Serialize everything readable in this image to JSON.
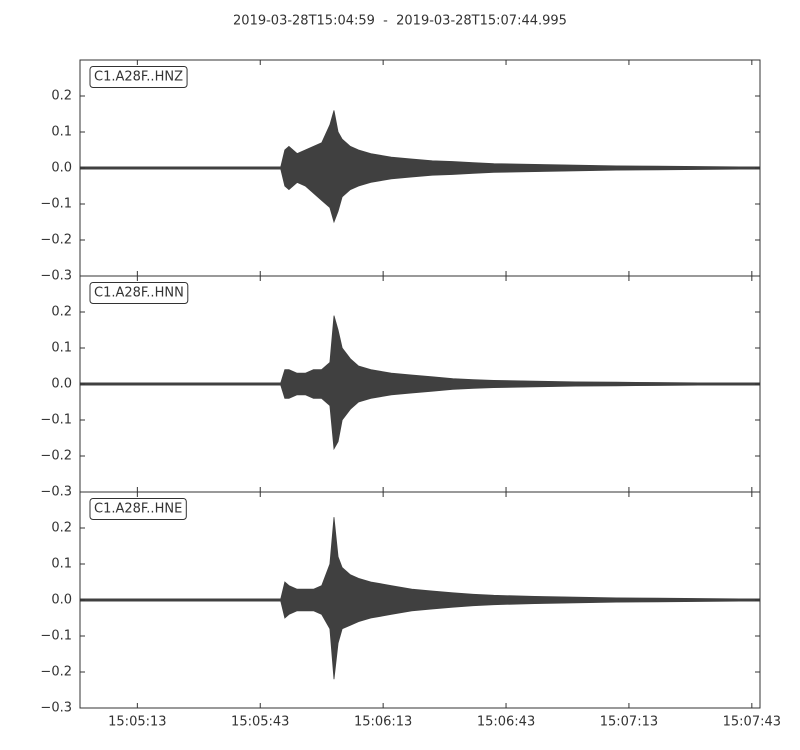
{
  "chart_data": {
    "type": "waveform",
    "title": "2019-03-28T15:04:59  -  2019-03-28T15:07:44.995",
    "color": "#404040",
    "xlim": [
      54299,
      54464.995
    ],
    "xticks": [
      {
        "value": 54313,
        "label": "15:05:13"
      },
      {
        "value": 54343,
        "label": "15:05:43"
      },
      {
        "value": 54373,
        "label": "15:06:13"
      },
      {
        "value": 54403,
        "label": "15:06:43"
      },
      {
        "value": 54433,
        "label": "15:07:13"
      },
      {
        "value": 54463,
        "label": "15:07:43"
      }
    ],
    "ylim": [
      -0.3,
      0.3
    ],
    "yticks": [
      {
        "value": -0.3,
        "label": "−0.3"
      },
      {
        "value": -0.2,
        "label": "−0.2"
      },
      {
        "value": -0.1,
        "label": "−0.1"
      },
      {
        "value": 0,
        "label": "0.0"
      },
      0.1,
      0.2
    ],
    "x": [
      54299,
      54305,
      54310,
      54315,
      54320,
      54325,
      54330,
      54335,
      54340,
      54345,
      54348,
      54349,
      54350,
      54352,
      54354,
      54356,
      54358,
      54360,
      54361,
      54362,
      54363,
      54365,
      54367,
      54370,
      54375,
      54380,
      54385,
      54390,
      54395,
      54400,
      54410,
      54420,
      54430,
      54440,
      54450,
      54460,
      54465
    ],
    "series": [
      {
        "name": "C1.A28F..HNZ",
        "upper": [
          0.003,
          0.003,
          0.003,
          0.003,
          0.003,
          0.003,
          0.003,
          0.003,
          0.003,
          0.003,
          0.003,
          0.05,
          0.06,
          0.04,
          0.05,
          0.06,
          0.07,
          0.12,
          0.16,
          0.1,
          0.08,
          0.06,
          0.05,
          0.04,
          0.03,
          0.025,
          0.02,
          0.018,
          0.015,
          0.012,
          0.01,
          0.008,
          0.006,
          0.005,
          0.004,
          0.003,
          0.003
        ],
        "lower": [
          -0.003,
          -0.003,
          -0.003,
          -0.003,
          -0.003,
          -0.003,
          -0.003,
          -0.003,
          -0.003,
          -0.003,
          -0.003,
          -0.05,
          -0.06,
          -0.04,
          -0.05,
          -0.07,
          -0.09,
          -0.11,
          -0.15,
          -0.12,
          -0.08,
          -0.06,
          -0.05,
          -0.04,
          -0.03,
          -0.025,
          -0.02,
          -0.018,
          -0.015,
          -0.012,
          -0.01,
          -0.008,
          -0.006,
          -0.005,
          -0.004,
          -0.003,
          -0.003
        ]
      },
      {
        "name": "C1.A28F..HNN",
        "upper": [
          0.003,
          0.003,
          0.003,
          0.003,
          0.003,
          0.003,
          0.003,
          0.003,
          0.003,
          0.003,
          0.003,
          0.04,
          0.04,
          0.03,
          0.03,
          0.04,
          0.04,
          0.06,
          0.19,
          0.15,
          0.1,
          0.07,
          0.05,
          0.04,
          0.03,
          0.025,
          0.02,
          0.015,
          0.012,
          0.01,
          0.008,
          0.006,
          0.005,
          0.004,
          0.003,
          0.003,
          0.003
        ],
        "lower": [
          -0.003,
          -0.003,
          -0.003,
          -0.003,
          -0.003,
          -0.003,
          -0.003,
          -0.003,
          -0.003,
          -0.003,
          -0.003,
          -0.04,
          -0.04,
          -0.03,
          -0.03,
          -0.04,
          -0.04,
          -0.06,
          -0.18,
          -0.16,
          -0.1,
          -0.07,
          -0.05,
          -0.04,
          -0.03,
          -0.025,
          -0.02,
          -0.015,
          -0.012,
          -0.01,
          -0.008,
          -0.006,
          -0.005,
          -0.004,
          -0.003,
          -0.003,
          -0.003
        ]
      },
      {
        "name": "C1.A28F..HNE",
        "upper": [
          0.003,
          0.003,
          0.003,
          0.003,
          0.003,
          0.003,
          0.003,
          0.003,
          0.003,
          0.003,
          0.003,
          0.05,
          0.04,
          0.03,
          0.03,
          0.03,
          0.04,
          0.1,
          0.23,
          0.12,
          0.09,
          0.07,
          0.06,
          0.05,
          0.04,
          0.03,
          0.025,
          0.02,
          0.016,
          0.013,
          0.01,
          0.008,
          0.006,
          0.005,
          0.004,
          0.003,
          0.003
        ],
        "lower": [
          -0.003,
          -0.003,
          -0.003,
          -0.003,
          -0.003,
          -0.003,
          -0.003,
          -0.003,
          -0.003,
          -0.003,
          -0.003,
          -0.05,
          -0.04,
          -0.03,
          -0.03,
          -0.03,
          -0.04,
          -0.08,
          -0.22,
          -0.12,
          -0.08,
          -0.07,
          -0.06,
          -0.05,
          -0.04,
          -0.03,
          -0.025,
          -0.02,
          -0.016,
          -0.013,
          -0.01,
          -0.008,
          -0.006,
          -0.005,
          -0.004,
          -0.003,
          -0.003
        ]
      }
    ]
  }
}
